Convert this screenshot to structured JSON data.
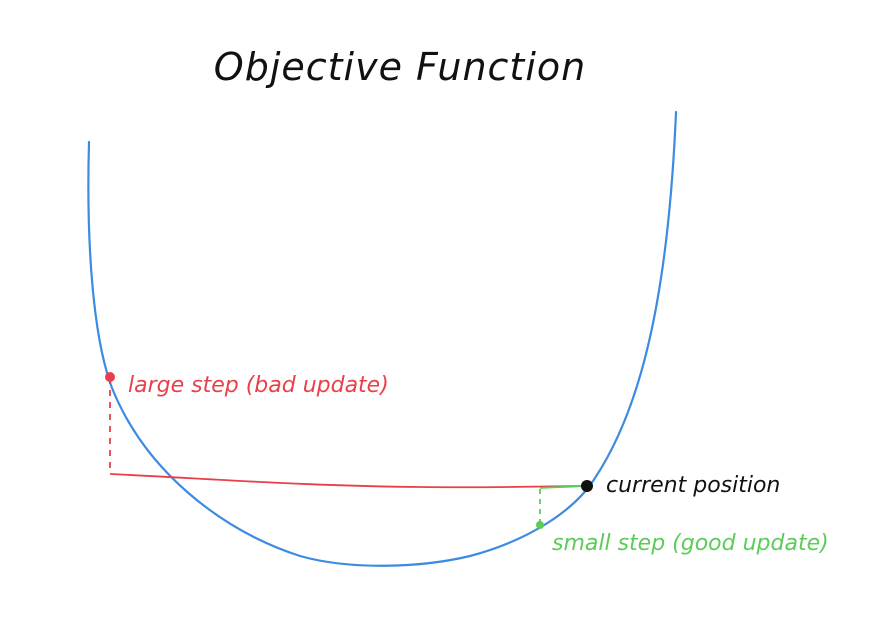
{
  "title": "Objective Function",
  "labels": {
    "large_step": "large step (bad update)",
    "current_position": "current position",
    "small_step": "small step (good update)"
  },
  "colors": {
    "curve": "#3d8be0",
    "large_step": "#e8404a",
    "current_position": "#111111",
    "small_step": "#5ccc58",
    "title": "#111111"
  }
}
